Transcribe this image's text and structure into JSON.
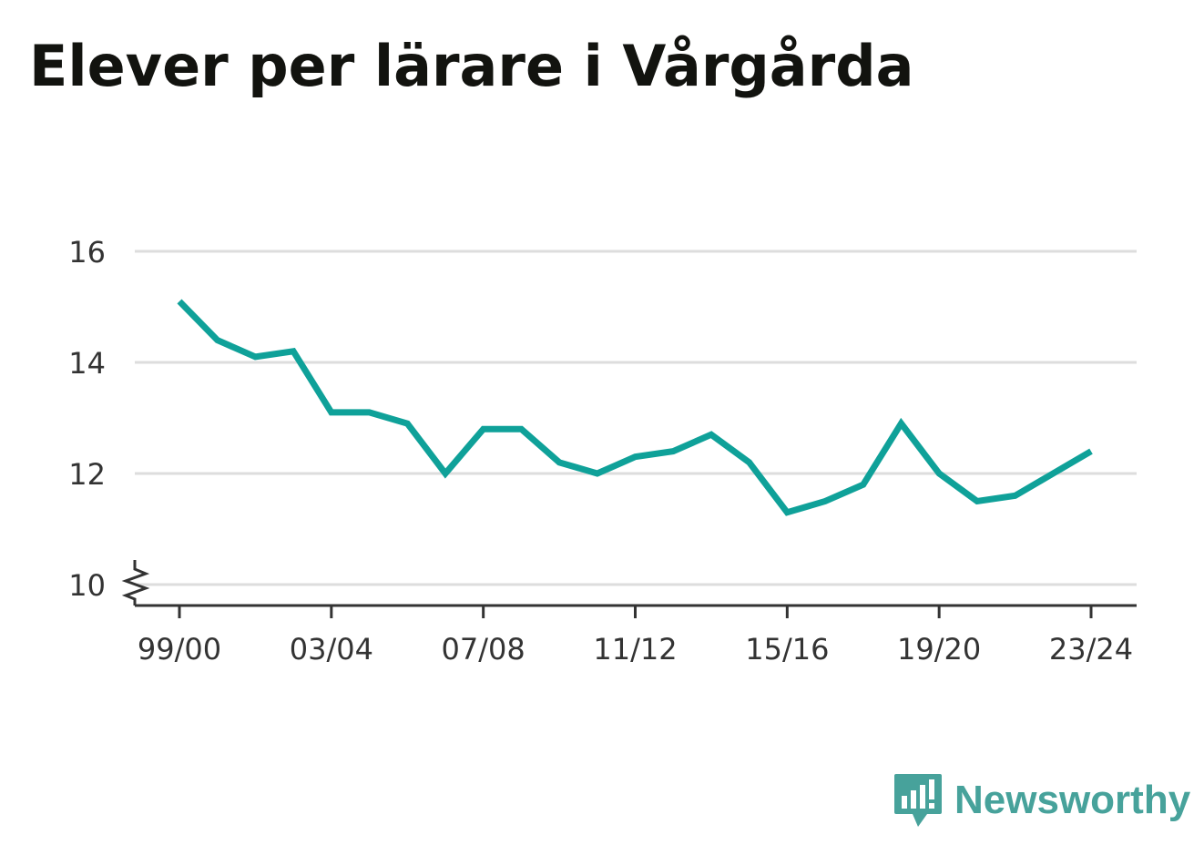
{
  "title": "Elever per lärare i Vårgårda",
  "brand": {
    "name": "Newsworthy",
    "color": "#47a29b",
    "icon": "newsworthy-chart-icon"
  },
  "chart_data": {
    "type": "line",
    "title": "Elever per lärare i Vårgårda",
    "xlabel": "",
    "ylabel": "",
    "x": [
      "99/00",
      "00/01",
      "01/02",
      "02/03",
      "03/04",
      "04/05",
      "05/06",
      "06/07",
      "07/08",
      "08/09",
      "09/10",
      "10/11",
      "11/12",
      "12/13",
      "13/14",
      "14/15",
      "15/16",
      "16/17",
      "17/18",
      "18/19",
      "19/20",
      "20/21",
      "21/22",
      "22/23",
      "23/24"
    ],
    "x_tick_labels": [
      "99/00",
      "03/04",
      "07/08",
      "11/12",
      "15/16",
      "19/20",
      "23/24"
    ],
    "series": [
      {
        "values": [
          15.1,
          14.4,
          14.1,
          14.2,
          13.1,
          13.1,
          12.9,
          12.0,
          12.8,
          12.8,
          12.2,
          12.0,
          12.3,
          12.4,
          12.7,
          12.2,
          11.3,
          11.5,
          11.8,
          12.9,
          12.0,
          11.5,
          11.6,
          12.0,
          12.4
        ],
        "color": "#0fa199"
      }
    ],
    "ylim": [
      10,
      16
    ],
    "y_ticks": [
      10,
      12,
      14,
      16
    ],
    "y_axis_break": true,
    "grid": true,
    "colors": {
      "grid": "#dddddd",
      "axis": "#333333",
      "line": "#0fa199"
    }
  }
}
